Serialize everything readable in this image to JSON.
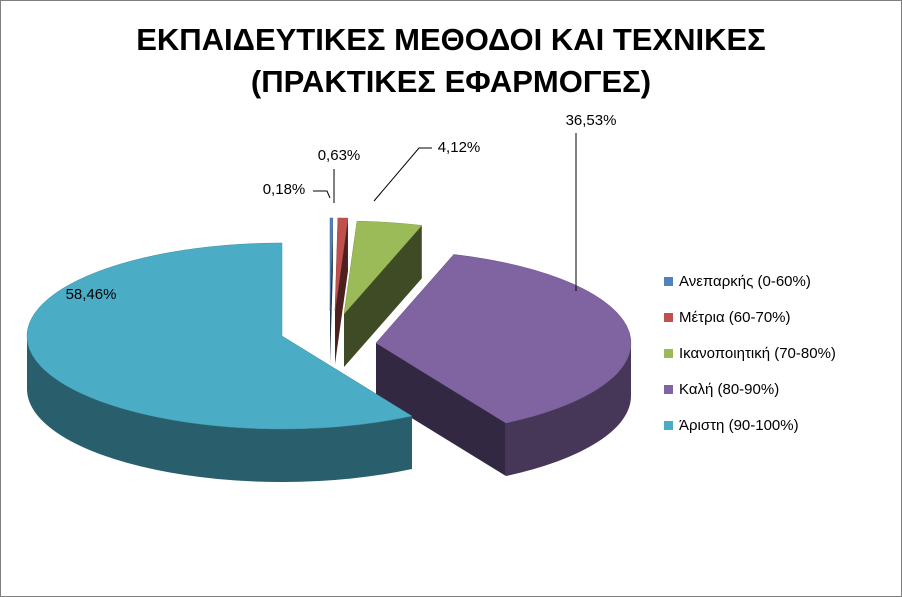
{
  "chart_data": {
    "type": "pie",
    "style": "3d-exploded",
    "title_lines": [
      "ΕΚΠΑΙΔΕΥΤΙΚΕΣ ΜΕΘΟΔΟΙ ΚΑΙ ΤΕΧΝΙΚΕΣ",
      "(ΠΡΑΚΤΙΚΕΣ ΕΦΑΡΜΟΓΕΣ)"
    ],
    "categories": [
      "Ανεπαρκής (0-60%)",
      "Μέτρια (60-70%)",
      "Ικανοποιητική (70-80%)",
      "Καλή (80-90%)",
      "Άριστη (90-100%)"
    ],
    "values": [
      0.18,
      0.63,
      4.12,
      36.53,
      58.46
    ],
    "data_labels": [
      "0,18%",
      "0,63%",
      "4,12%",
      "36,53%",
      "58,46%"
    ],
    "colors": [
      "#4f81bd",
      "#c0504d",
      "#9bbb59",
      "#8064a2",
      "#4bacc6"
    ],
    "legend_position": "right"
  }
}
